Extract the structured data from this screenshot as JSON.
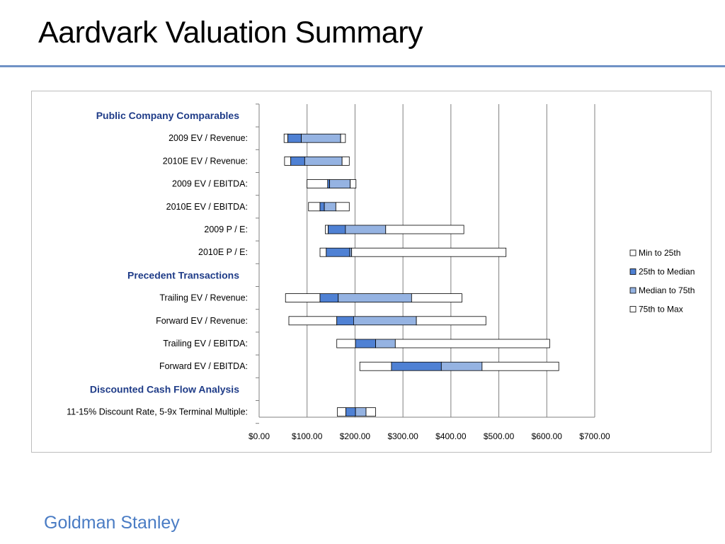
{
  "slide": {
    "title": "Aardvark Valuation Summary",
    "footer": "Goldman Stanley"
  },
  "colors": {
    "title_rule": "#7092c6",
    "segment_fill": [
      "#ffffff",
      "#4f81d4",
      "#95b3e2",
      "#ffffff"
    ],
    "segment_stroke": "#000000",
    "section_header": "#1f3c88",
    "gridline": "#808080"
  },
  "chart_data": {
    "type": "bar",
    "orientation": "horizontal",
    "stacked": true,
    "title": "",
    "xlabel": "",
    "ylabel": "",
    "xlim": [
      0,
      700
    ],
    "x_ticks": [
      0,
      100,
      200,
      300,
      400,
      500,
      600,
      700
    ],
    "x_tick_labels": [
      "$0.00",
      "$100.00",
      "$200.00",
      "$300.00",
      "$400.00",
      "$500.00",
      "$600.00",
      "$700.00"
    ],
    "grid": "vertical",
    "legend_position": "right",
    "legend": [
      "Min to 25th",
      "25th to Median",
      "Median to 75th",
      "75th to Max"
    ],
    "sections": [
      {
        "header": "Public Company Comparables",
        "rows": [
          {
            "label": "2009 EV / Revenue:",
            "min": 52,
            "q25": 60,
            "median": 88,
            "q75": 170,
            "max": 180
          },
          {
            "label": "2010E EV / Revenue:",
            "min": 53,
            "q25": 66,
            "median": 95,
            "q75": 173,
            "max": 188
          },
          {
            "label": "2009 EV / EBITDA:",
            "min": 100,
            "q25": 143,
            "median": 147,
            "q75": 190,
            "max": 202
          },
          {
            "label": "2010E EV / EBITDA:",
            "min": 103,
            "q25": 127,
            "median": 136,
            "q75": 160,
            "max": 188
          },
          {
            "label": "2009 P / E:",
            "min": 138,
            "q25": 144,
            "median": 180,
            "q75": 264,
            "max": 427
          },
          {
            "label": "2010E P / E:",
            "min": 127,
            "q25": 140,
            "median": 189,
            "q75": 193,
            "max": 515
          }
        ]
      },
      {
        "header": "Precedent Transactions",
        "rows": [
          {
            "label": "Trailing EV / Revenue:",
            "min": 55,
            "q25": 127,
            "median": 165,
            "q75": 318,
            "max": 423
          },
          {
            "label": "Forward EV / Revenue:",
            "min": 62,
            "q25": 162,
            "median": 197,
            "q75": 328,
            "max": 473
          },
          {
            "label": "Trailing EV / EBITDA:",
            "min": 162,
            "q25": 201,
            "median": 243,
            "q75": 284,
            "max": 606
          },
          {
            "label": "Forward EV / EBITDA:",
            "min": 210,
            "q25": 276,
            "median": 380,
            "q75": 465,
            "max": 625
          }
        ]
      },
      {
        "header": "Discounted Cash Flow Analysis",
        "rows": [
          {
            "label": "11-15% Discount Rate, 5-9x Terminal Multiple:",
            "min": 163,
            "q25": 181,
            "median": 201,
            "q75": 223,
            "max": 243
          }
        ]
      }
    ]
  }
}
